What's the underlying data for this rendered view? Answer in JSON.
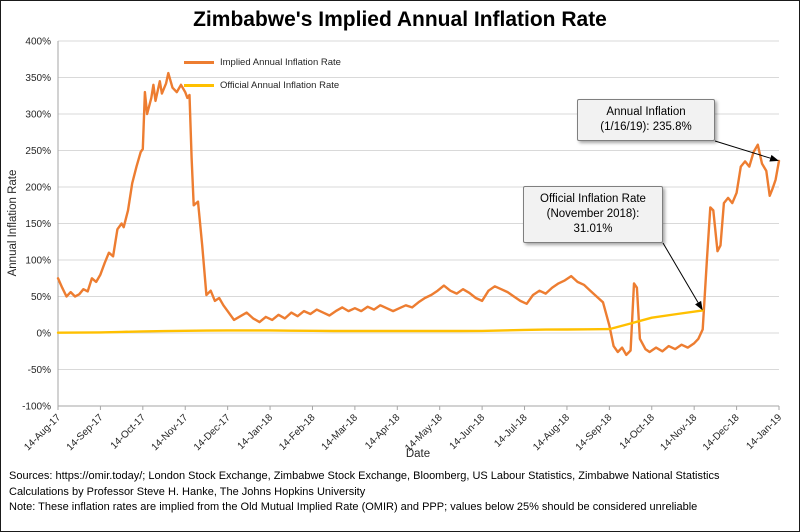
{
  "chart_data": {
    "type": "line",
    "title": "Zimbabwe's Implied Annual Inflation Rate",
    "xlabel": "Date",
    "ylabel": "Annual Inflation Rate",
    "ylim": [
      -100,
      400
    ],
    "ytick_step": 50,
    "ytick_format": "percent",
    "grid": "horizontal",
    "legend_position": "top-left-inside",
    "x_tick_labels": [
      "14-Aug-17",
      "14-Sep-17",
      "14-Oct-17",
      "14-Nov-17",
      "14-Dec-17",
      "14-Jan-18",
      "14-Feb-18",
      "14-Mar-18",
      "14-Apr-18",
      "14-May-18",
      "14-Jun-18",
      "14-Jul-18",
      "14-Aug-18",
      "14-Sep-18",
      "14-Oct-18",
      "14-Nov-18",
      "14-Dec-18",
      "14-Jan-19"
    ],
    "series": [
      {
        "name": "Implied Annual Inflation Rate",
        "color": "#ED7D31",
        "points": [
          [
            0,
            75
          ],
          [
            0.1,
            62
          ],
          [
            0.2,
            50
          ],
          [
            0.3,
            56
          ],
          [
            0.4,
            50
          ],
          [
            0.5,
            53
          ],
          [
            0.6,
            60
          ],
          [
            0.7,
            57
          ],
          [
            0.8,
            75
          ],
          [
            0.9,
            70
          ],
          [
            1.0,
            80
          ],
          [
            1.1,
            96
          ],
          [
            1.2,
            110
          ],
          [
            1.3,
            105
          ],
          [
            1.4,
            142
          ],
          [
            1.5,
            150
          ],
          [
            1.55,
            145
          ],
          [
            1.65,
            168
          ],
          [
            1.75,
            205
          ],
          [
            1.85,
            228
          ],
          [
            1.95,
            248
          ],
          [
            2.0,
            252
          ],
          [
            2.05,
            330
          ],
          [
            2.1,
            300
          ],
          [
            2.2,
            322
          ],
          [
            2.25,
            340
          ],
          [
            2.3,
            318
          ],
          [
            2.4,
            345
          ],
          [
            2.45,
            328
          ],
          [
            2.55,
            342
          ],
          [
            2.6,
            356
          ],
          [
            2.7,
            336
          ],
          [
            2.8,
            330
          ],
          [
            2.9,
            340
          ],
          [
            3.0,
            330
          ],
          [
            3.05,
            322
          ],
          [
            3.1,
            326
          ],
          [
            3.15,
            240
          ],
          [
            3.2,
            175
          ],
          [
            3.3,
            180
          ],
          [
            3.4,
            120
          ],
          [
            3.5,
            52
          ],
          [
            3.6,
            58
          ],
          [
            3.7,
            44
          ],
          [
            3.8,
            48
          ],
          [
            3.9,
            38
          ],
          [
            4.0,
            30
          ],
          [
            4.15,
            18
          ],
          [
            4.3,
            23
          ],
          [
            4.45,
            28
          ],
          [
            4.6,
            20
          ],
          [
            4.75,
            15
          ],
          [
            4.9,
            22
          ],
          [
            5.05,
            18
          ],
          [
            5.2,
            25
          ],
          [
            5.35,
            20
          ],
          [
            5.5,
            28
          ],
          [
            5.65,
            23
          ],
          [
            5.8,
            30
          ],
          [
            5.95,
            26
          ],
          [
            6.1,
            32
          ],
          [
            6.25,
            28
          ],
          [
            6.4,
            24
          ],
          [
            6.55,
            30
          ],
          [
            6.7,
            35
          ],
          [
            6.85,
            30
          ],
          [
            7.0,
            34
          ],
          [
            7.15,
            30
          ],
          [
            7.3,
            36
          ],
          [
            7.45,
            32
          ],
          [
            7.6,
            38
          ],
          [
            7.75,
            34
          ],
          [
            7.9,
            30
          ],
          [
            8.05,
            34
          ],
          [
            8.2,
            38
          ],
          [
            8.35,
            35
          ],
          [
            8.5,
            42
          ],
          [
            8.65,
            48
          ],
          [
            8.8,
            52
          ],
          [
            8.95,
            58
          ],
          [
            9.1,
            65
          ],
          [
            9.25,
            58
          ],
          [
            9.4,
            54
          ],
          [
            9.55,
            60
          ],
          [
            9.7,
            55
          ],
          [
            9.85,
            48
          ],
          [
            10.0,
            44
          ],
          [
            10.15,
            58
          ],
          [
            10.3,
            64
          ],
          [
            10.45,
            60
          ],
          [
            10.6,
            56
          ],
          [
            10.75,
            50
          ],
          [
            10.9,
            44
          ],
          [
            11.05,
            40
          ],
          [
            11.2,
            52
          ],
          [
            11.35,
            58
          ],
          [
            11.5,
            54
          ],
          [
            11.65,
            62
          ],
          [
            11.8,
            68
          ],
          [
            11.95,
            72
          ],
          [
            12.1,
            78
          ],
          [
            12.25,
            70
          ],
          [
            12.4,
            66
          ],
          [
            12.55,
            58
          ],
          [
            12.7,
            50
          ],
          [
            12.85,
            42
          ],
          [
            13.0,
            10
          ],
          [
            13.1,
            -18
          ],
          [
            13.2,
            -26
          ],
          [
            13.3,
            -20
          ],
          [
            13.4,
            -30
          ],
          [
            13.5,
            -24
          ],
          [
            13.58,
            68
          ],
          [
            13.65,
            62
          ],
          [
            13.72,
            -8
          ],
          [
            13.85,
            -22
          ],
          [
            13.95,
            -26
          ],
          [
            14.1,
            -20
          ],
          [
            14.25,
            -25
          ],
          [
            14.4,
            -18
          ],
          [
            14.55,
            -22
          ],
          [
            14.7,
            -16
          ],
          [
            14.85,
            -20
          ],
          [
            15.0,
            -14
          ],
          [
            15.1,
            -8
          ],
          [
            15.2,
            5
          ],
          [
            15.3,
            100
          ],
          [
            15.38,
            172
          ],
          [
            15.45,
            168
          ],
          [
            15.55,
            112
          ],
          [
            15.62,
            120
          ],
          [
            15.7,
            178
          ],
          [
            15.8,
            185
          ],
          [
            15.9,
            178
          ],
          [
            16.0,
            192
          ],
          [
            16.1,
            228
          ],
          [
            16.2,
            235
          ],
          [
            16.3,
            228
          ],
          [
            16.4,
            248
          ],
          [
            16.5,
            258
          ],
          [
            16.6,
            232
          ],
          [
            16.7,
            222
          ],
          [
            16.78,
            188
          ],
          [
            16.85,
            198
          ],
          [
            16.92,
            210
          ],
          [
            17.0,
            235.8
          ]
        ]
      },
      {
        "name": "Official Annual Inflation Rate",
        "color": "#FFC000",
        "points": [
          [
            0,
            0.4
          ],
          [
            0.5,
            0.6
          ],
          [
            1,
            0.8
          ],
          [
            1.5,
            1.5
          ],
          [
            2,
            2.2
          ],
          [
            2.5,
            2.6
          ],
          [
            3,
            3.0
          ],
          [
            3.5,
            3.3
          ],
          [
            4,
            3.5
          ],
          [
            4.5,
            3.5
          ],
          [
            5,
            3.5
          ],
          [
            5.5,
            3.2
          ],
          [
            6,
            3.0
          ],
          [
            6.5,
            2.8
          ],
          [
            7,
            2.7
          ],
          [
            7.5,
            2.7
          ],
          [
            8,
            2.7
          ],
          [
            8.5,
            2.7
          ],
          [
            9,
            2.7
          ],
          [
            9.5,
            2.8
          ],
          [
            10,
            2.9
          ],
          [
            10.5,
            3.6
          ],
          [
            11,
            4.3
          ],
          [
            11.5,
            4.6
          ],
          [
            12,
            4.8
          ],
          [
            12.5,
            5.1
          ],
          [
            13,
            5.4
          ],
          [
            13.5,
            13
          ],
          [
            14,
            20.9
          ],
          [
            14.6,
            26
          ],
          [
            15.2,
            31.01
          ]
        ]
      }
    ],
    "annotations": [
      {
        "lines": [
          "Annual Inflation",
          "(1/16/19): 235.8%"
        ],
        "target": {
          "x": 17.0,
          "y": 235.8
        }
      },
      {
        "lines": [
          "Official Inflation Rate",
          "(November 2018):",
          "31.01%"
        ],
        "target": {
          "x": 15.2,
          "y": 31.01
        }
      }
    ]
  },
  "footer": {
    "line1": "Sources: https://omir.today/; London Stock Exchange, Zimbabwe Stock Exchange, Bloomberg, US Labour Statistics, Zimbabwe National Statistics",
    "line2": "Calculations by Professor Steve H. Hanke, The Johns Hopkins University",
    "line3": "Note: These inflation rates are implied from the Old Mutual Implied Rate (OMIR) and PPP; values below 25% should be considered unreliable"
  }
}
